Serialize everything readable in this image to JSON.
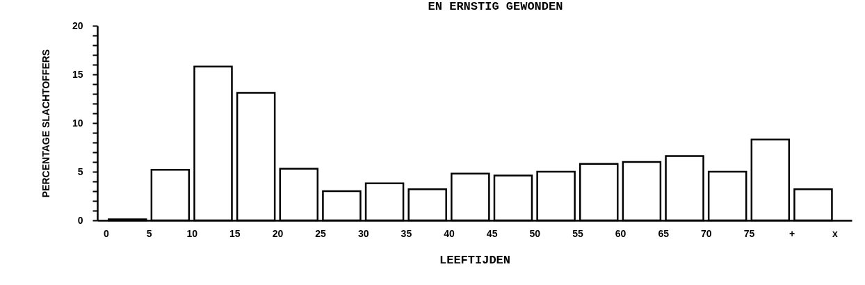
{
  "chart_data": {
    "type": "bar",
    "title": "EN ERNSTIG GEWONDEN",
    "xlabel": "LEEFTIJDEN",
    "ylabel": "PERCENTAGE SLACHTOFFERS",
    "x": [
      2.5,
      7.5,
      12.5,
      17.5,
      22.5,
      27.5,
      32.5,
      37.5,
      42.5,
      47.5,
      52.5,
      57.5,
      62.5,
      67.5,
      72.5,
      77.5,
      82.5
    ],
    "values": [
      0.1,
      5.2,
      15.8,
      13.1,
      5.3,
      3.0,
      3.8,
      3.2,
      4.8,
      4.6,
      5.0,
      5.8,
      6.0,
      6.6,
      5.0,
      8.3,
      3.2
    ],
    "color": "#ffffff",
    "xlim": [
      -0.6,
      86.6
    ],
    "xticks": [
      0,
      5,
      10,
      15,
      20,
      25,
      30,
      35,
      40,
      45,
      50,
      55,
      60,
      65,
      70,
      75,
      {
        "value": 80,
        "label": "+"
      },
      {
        "value": 85,
        "label": "x"
      }
    ],
    "ylim": [
      0,
      20
    ],
    "yticks": [
      0,
      {
        "value": 1,
        "label": null
      },
      {
        "value": 2,
        "label": null
      },
      {
        "value": 3,
        "label": null
      },
      {
        "value": 4,
        "label": null
      },
      5,
      {
        "value": 6,
        "label": null
      },
      {
        "value": 7,
        "label": null
      },
      {
        "value": 8,
        "label": null
      },
      {
        "value": 9,
        "label": null
      },
      10,
      {
        "value": 11,
        "label": null
      },
      {
        "value": 12,
        "label": null
      },
      {
        "value": 13,
        "label": null
      },
      {
        "value": 14,
        "label": null
      },
      15,
      {
        "value": 16,
        "label": null
      },
      {
        "value": 17,
        "label": null
      },
      {
        "value": 18,
        "label": null
      },
      {
        "value": 19,
        "label": null
      },
      20
    ],
    "grid": false
  }
}
